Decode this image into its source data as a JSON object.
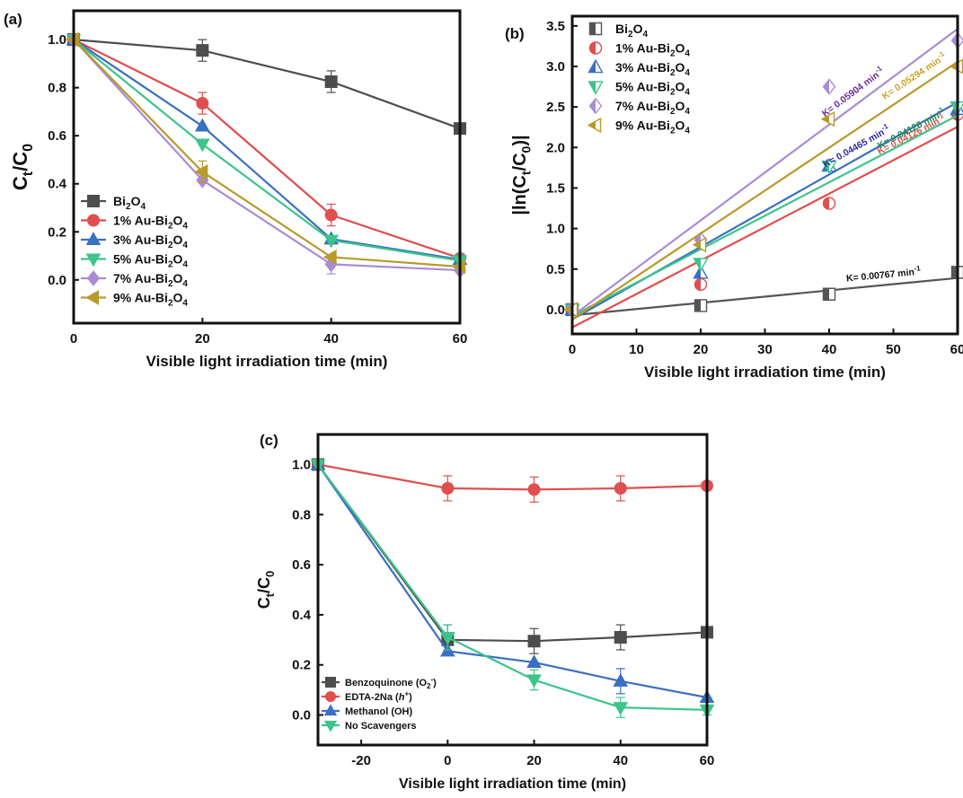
{
  "chart_data": [
    {
      "id": "a",
      "type": "line",
      "panel_label": "(a)",
      "xlabel": "Visible light irradiation time (min)",
      "ylabel": "Ct/C0",
      "xlim": [
        0,
        60
      ],
      "ylim": [
        -0.18,
        1.12
      ],
      "xticks": [
        0,
        20,
        40,
        60
      ],
      "yticks": [
        0.0,
        0.2,
        0.4,
        0.6,
        0.8,
        1.0
      ],
      "legend_position": "bottom-left",
      "series": [
        {
          "name": "Bi2O4",
          "color": "#4d4d4d",
          "marker": "square",
          "x": [
            0,
            20,
            40,
            60
          ],
          "y": [
            1.0,
            0.955,
            0.825,
            0.63
          ],
          "err": [
            0.0,
            0.045,
            0.045,
            0.0
          ]
        },
        {
          "name": "1% Au-Bi2O4",
          "color": "#e04e4e",
          "marker": "circle",
          "x": [
            0,
            20,
            40,
            60
          ],
          "y": [
            1.0,
            0.735,
            0.27,
            0.09
          ],
          "err": [
            0.0,
            0.045,
            0.045,
            0.0
          ]
        },
        {
          "name": "3% Au-Bi2O4",
          "color": "#3a6fc4",
          "marker": "triangle-up",
          "x": [
            0,
            20,
            40,
            60
          ],
          "y": [
            1.0,
            0.64,
            0.17,
            0.085
          ],
          "err": [
            0.0,
            0.0,
            0.0,
            0.0
          ]
        },
        {
          "name": "5% Au-Bi2O4",
          "color": "#3cc48a",
          "marker": "triangle-down",
          "x": [
            0,
            20,
            40,
            60
          ],
          "y": [
            1.0,
            0.565,
            0.165,
            0.08
          ],
          "err": [
            0.0,
            0.0,
            0.0,
            0.03
          ]
        },
        {
          "name": "7% Au-Bi2O4",
          "color": "#a98bd6",
          "marker": "diamond",
          "x": [
            0,
            20,
            40,
            60
          ],
          "y": [
            1.0,
            0.415,
            0.065,
            0.04
          ],
          "err": [
            0.0,
            0.0,
            0.04,
            0.0
          ]
        },
        {
          "name": "9% Au-Bi2O4",
          "color": "#b89a2a",
          "marker": "triangle-left",
          "x": [
            0,
            20,
            40,
            60
          ],
          "y": [
            1.0,
            0.45,
            0.095,
            0.055
          ],
          "err": [
            0.0,
            0.045,
            0.0,
            0.0
          ]
        }
      ]
    },
    {
      "id": "b",
      "type": "scatter",
      "panel_label": "(b)",
      "xlabel": "Visible light irradiation time (min)",
      "ylabel": "|ln(Ct/C0)|",
      "xlim": [
        0,
        60
      ],
      "ylim": [
        -0.3,
        3.62
      ],
      "xticks": [
        0,
        10,
        20,
        30,
        40,
        50,
        60
      ],
      "yticks": [
        0.0,
        0.5,
        1.0,
        1.5,
        2.0,
        2.5,
        3.0,
        3.5
      ],
      "legend_position": "top-left",
      "series": [
        {
          "name": "Bi2O4",
          "color": "#555555",
          "marker": "square-half",
          "x": [
            0,
            20,
            40,
            60
          ],
          "y": [
            0.0,
            0.05,
            0.19,
            0.46
          ],
          "fit": [
            -0.07,
            0.00767
          ],
          "k_label": "K= 0.00767 min-1"
        },
        {
          "name": "1% Au-Bi2O4",
          "color": "#e04e4e",
          "marker": "circle-half",
          "x": [
            0,
            20,
            40,
            60
          ],
          "y": [
            0.0,
            0.31,
            1.31,
            2.41
          ],
          "fit": [
            -0.22,
            0.04126
          ],
          "k_label": "K= 0.04126 min-1"
        },
        {
          "name": "3% Au-Bi2O4",
          "color": "#3a6fc4",
          "marker": "triangle-up-half",
          "x": [
            0,
            20,
            40,
            60
          ],
          "y": [
            0.0,
            0.45,
            1.77,
            2.47
          ],
          "fit": [
            -0.12,
            0.04465
          ],
          "k_label": "K= 0.04465 min-1"
        },
        {
          "name": "5% Au-Bi2O4",
          "color": "#3cc48a",
          "marker": "triangle-down-half",
          "x": [
            0,
            20,
            40,
            60
          ],
          "y": [
            0.0,
            0.57,
            1.77,
            2.5
          ],
          "fit": [
            -0.08,
            0.04126
          ],
          "k_label": "K= 0.04126 min-1"
        },
        {
          "name": "7% Au-Bi2O4",
          "color": "#a98bd6",
          "marker": "diamond-half",
          "x": [
            0,
            20,
            40,
            60
          ],
          "y": [
            0.0,
            0.86,
            2.75,
            3.32
          ],
          "fit": [
            -0.08,
            0.05904
          ],
          "k_label": "K= 0.05904 min-1"
        },
        {
          "name": "9% Au-Bi2O4",
          "color": "#b89a2a",
          "marker": "triangle-left-half",
          "x": [
            0,
            20,
            40,
            60
          ],
          "y": [
            0.0,
            0.8,
            2.35,
            3.0
          ],
          "fit": [
            -0.12,
            0.05294
          ],
          "k_label": "K= 0.05294 min-1"
        }
      ]
    },
    {
      "id": "c",
      "type": "line",
      "panel_label": "(c)",
      "xlabel": "Visible light irradiation time (min)",
      "ylabel": "Ct/C0",
      "xlim": [
        -30,
        60
      ],
      "ylim": [
        -0.12,
        1.12
      ],
      "xticks": [
        -20,
        0,
        20,
        40,
        60
      ],
      "yticks": [
        0.0,
        0.2,
        0.4,
        0.6,
        0.8,
        1.0
      ],
      "legend_position": "bottom-left",
      "series": [
        {
          "name": "Benzoquinone (O2-)",
          "color": "#4d4d4d",
          "marker": "square",
          "x": [
            -30,
            0,
            20,
            40,
            60
          ],
          "y": [
            1.0,
            0.3,
            0.295,
            0.31,
            0.33
          ],
          "err": [
            0.0,
            0.06,
            0.05,
            0.05,
            0.0
          ]
        },
        {
          "name": "EDTA-2Na (h+)",
          "color": "#e04e4e",
          "marker": "circle",
          "x": [
            -30,
            0,
            20,
            40,
            60
          ],
          "y": [
            1.0,
            0.905,
            0.9,
            0.905,
            0.915
          ],
          "err": [
            0.0,
            0.05,
            0.05,
            0.05,
            0.0
          ]
        },
        {
          "name": "Methanol (OH)",
          "color": "#3a6fc4",
          "marker": "triangle-up",
          "x": [
            -30,
            0,
            20,
            40,
            60
          ],
          "y": [
            1.0,
            0.255,
            0.21,
            0.135,
            0.07
          ],
          "err": [
            0.0,
            0.0,
            0.0,
            0.05,
            0.0
          ]
        },
        {
          "name": "No Scavengers",
          "color": "#3cc48a",
          "marker": "triangle-down",
          "x": [
            -30,
            0,
            20,
            40,
            60
          ],
          "y": [
            1.0,
            0.31,
            0.14,
            0.03,
            0.02
          ],
          "err": [
            0.0,
            0.05,
            0.04,
            0.04,
            0.02
          ]
        }
      ]
    }
  ]
}
